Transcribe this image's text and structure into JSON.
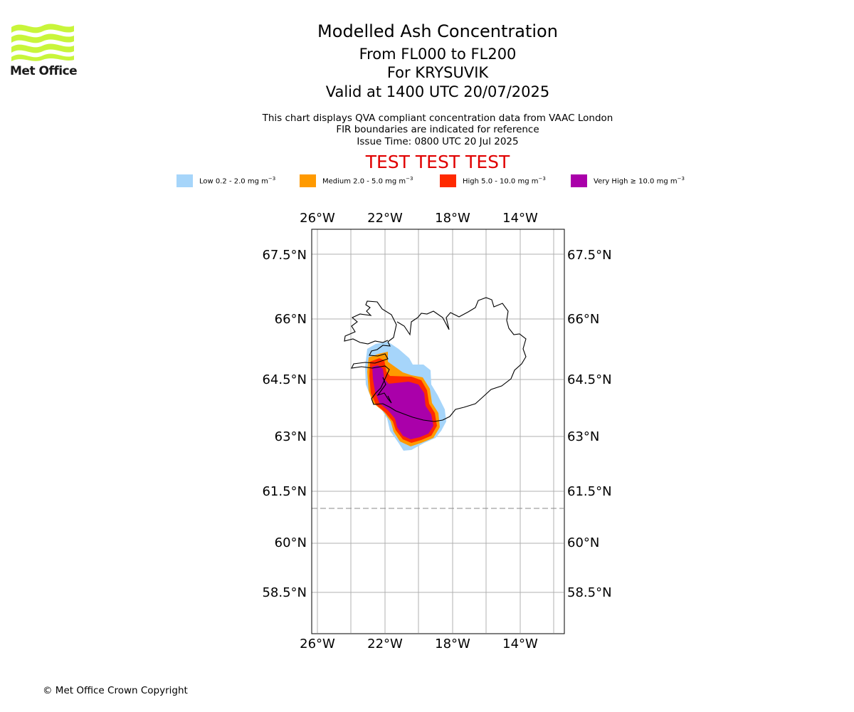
{
  "logo": {
    "text": "Met Office",
    "icon": "met-office-waves-logo",
    "color": "#c8f53a"
  },
  "title": {
    "line1": "Modelled Ash Concentration",
    "line2": "From FL000 to FL200",
    "line3": "For KRYSUVIK",
    "line4": "Valid at 1400 UTC 20/07/2025"
  },
  "subtitle": {
    "line1": "This chart displays QVA compliant concentration data from VAAC London",
    "line2": "FIR boundaries are indicated for reference",
    "line3": "Issue Time: 0800 UTC 20 Jul 2025"
  },
  "test_banner": "TEST TEST TEST",
  "legend": [
    {
      "label": "Low 0.2 - 2.0 mg m",
      "unit_exp": "−3",
      "color": "#a6d5fa"
    },
    {
      "label": "Medium 2.0 - 5.0 mg m",
      "unit_exp": "−3",
      "color": "#ff9a00"
    },
    {
      "label": "High 5.0 - 10.0 mg m",
      "unit_exp": "−3",
      "color": "#ff2a00"
    },
    {
      "label": "Very High ≥ 10.0 mg m",
      "unit_exp": "−3",
      "color": "#aa00aa"
    }
  ],
  "map": {
    "lon_ticks": [
      "26°W",
      "22°W",
      "18°W",
      "14°W"
    ],
    "lat_ticks": [
      "67.5°N",
      "66°N",
      "64.5°N",
      "63°N",
      "61.5°N",
      "60°N",
      "58.5°N"
    ],
    "grid": true,
    "fir_boundary_lat": "61°N (dashed)"
  },
  "copyright": "© Met Office Crown Copyright"
}
